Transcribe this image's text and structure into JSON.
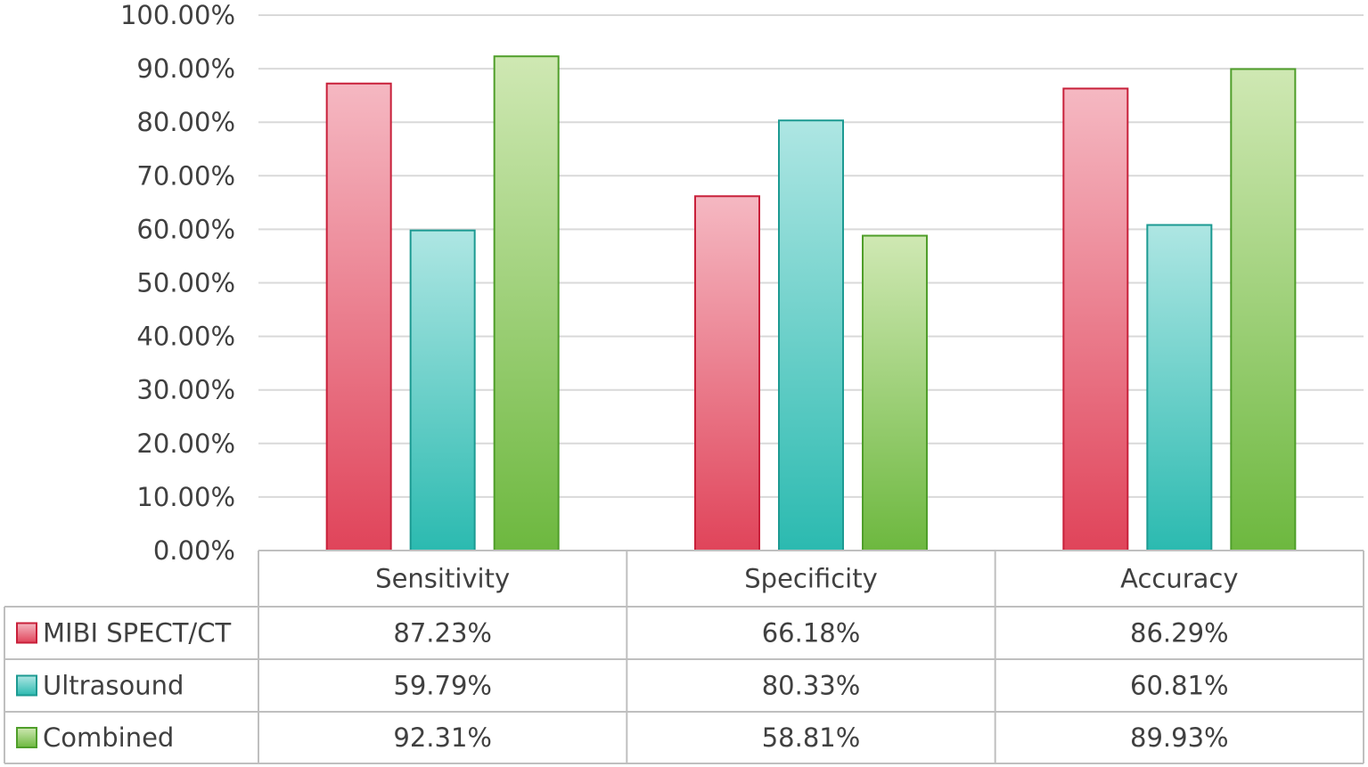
{
  "chart_data": {
    "type": "bar",
    "title": "",
    "xlabel": "",
    "ylabel": "",
    "ylim": [
      0,
      100
    ],
    "y_ticks": [
      "0.00%",
      "10.00%",
      "20.00%",
      "30.00%",
      "40.00%",
      "50.00%",
      "60.00%",
      "70.00%",
      "80.00%",
      "90.00%",
      "100.00%"
    ],
    "grid": true,
    "legend": "data-table",
    "categories": [
      "Sensitivity",
      "Specificity",
      "Accuracy"
    ],
    "series": [
      {
        "name": "MIBI SPECT/CT",
        "values": [
          87.23,
          66.18,
          86.29
        ],
        "labels": [
          "87.23%",
          "66.18%",
          "86.29%"
        ],
        "color_top": "#f5b8c2",
        "color_bottom": "#e0445a",
        "stroke": "#c8203a"
      },
      {
        "name": "Ultrasound",
        "values": [
          59.79,
          80.33,
          60.81
        ],
        "labels": [
          "59.79%",
          "80.33%",
          "60.81%"
        ],
        "color_top": "#aee6e3",
        "color_bottom": "#2bbab0",
        "stroke": "#1c9a92"
      },
      {
        "name": "Combined",
        "values": [
          92.31,
          58.81,
          89.93
        ],
        "labels": [
          "92.31%",
          "58.81%",
          "89.93%"
        ],
        "color_top": "#cfe8b3",
        "color_bottom": "#6db83f",
        "stroke": "#4f9e2a"
      }
    ]
  }
}
